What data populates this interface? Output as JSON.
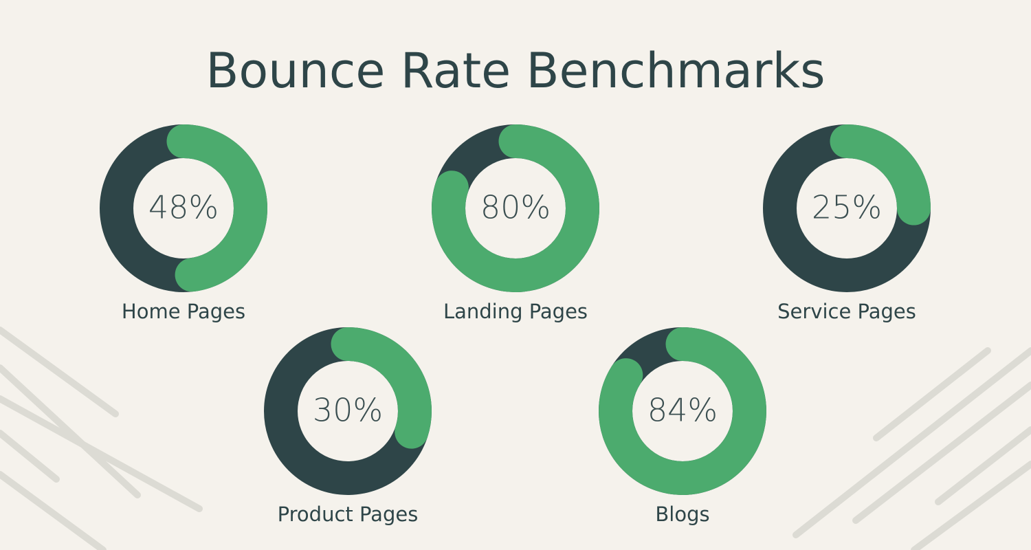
{
  "title": "Bounce Rate Benchmarks",
  "chart_data": [
    {
      "type": "donut",
      "categories": [
        "Home Pages"
      ],
      "values": [
        48
      ],
      "value_labels": [
        "48%"
      ],
      "color": "#4cab6e",
      "track_color": "#2e4548"
    },
    {
      "type": "donut",
      "categories": [
        "Landing Pages"
      ],
      "values": [
        80
      ],
      "value_labels": [
        "80%"
      ],
      "color": "#4cab6e",
      "track_color": "#2e4548"
    },
    {
      "type": "donut",
      "categories": [
        "Service Pages"
      ],
      "values": [
        25
      ],
      "value_labels": [
        "25%"
      ],
      "color": "#4cab6e",
      "track_color": "#2e4548"
    },
    {
      "type": "donut",
      "categories": [
        "Product Pages"
      ],
      "values": [
        30
      ],
      "value_labels": [
        "30%"
      ],
      "color": "#4cab6e",
      "track_color": "#2e4548"
    },
    {
      "type": "donut",
      "categories": [
        "Blogs"
      ],
      "values": [
        84
      ],
      "value_labels": [
        "84%"
      ],
      "color": "#4cab6e",
      "track_color": "#2e4548"
    }
  ]
}
